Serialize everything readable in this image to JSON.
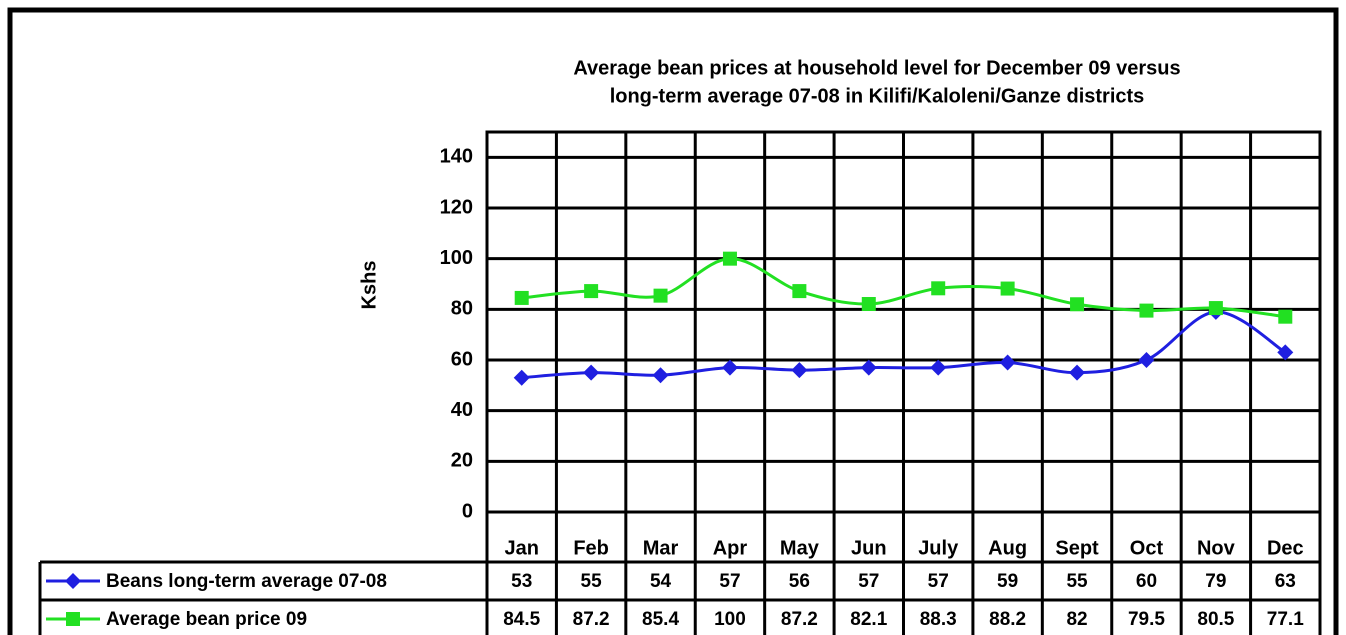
{
  "chart_data": {
    "type": "line",
    "title": [
      "Average bean prices at household level for December 09 versus",
      "long-term average 07-08 in Kilifi/Kaloleni/Ganze districts"
    ],
    "y_label": "Kshs",
    "categories": [
      "Jan",
      "Feb",
      "Mar",
      "Apr",
      "May",
      "Jun",
      "July",
      "Aug",
      "Sept",
      "Oct",
      "Nov",
      "Dec"
    ],
    "series": [
      {
        "name": "Beans long-term average 07-08",
        "color": "#1f1fe0",
        "marker": "diamond",
        "values": [
          53,
          55,
          54,
          57,
          56,
          57,
          57,
          59,
          55,
          60,
          79,
          63
        ]
      },
      {
        "name": "Average bean price 09",
        "color": "#22e022",
        "marker": "square",
        "values": [
          84.5,
          87.2,
          85.4,
          100,
          87.2,
          82.1,
          88.3,
          88.2,
          82,
          79.5,
          80.5,
          77.1
        ]
      }
    ],
    "ylim": [
      0,
      150
    ],
    "yticks": [
      0,
      20,
      40,
      60,
      80,
      100,
      120,
      140
    ],
    "grid": true,
    "data_table": true
  }
}
